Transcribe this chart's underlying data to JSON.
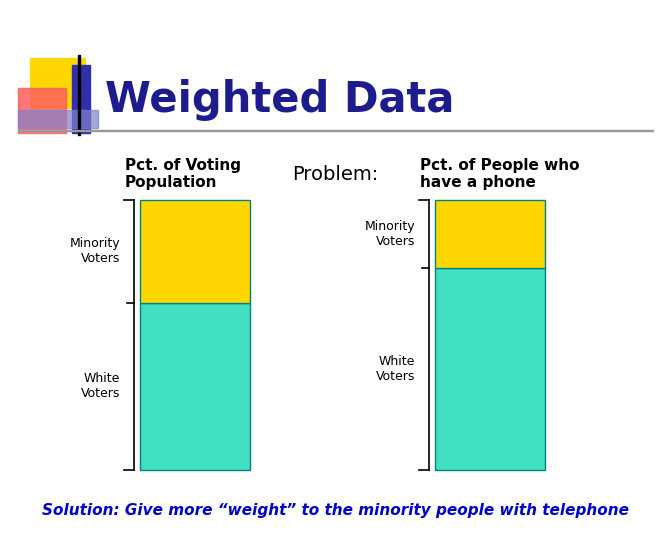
{
  "title": "Weighted Data",
  "subtitle": "Problem:",
  "solution_text": "Solution: Give more “weight” to the minority people with telephone",
  "bar1_title": "Pct. of Voting\nPopulation",
  "bar2_title": "Pct. of People who\nhave a phone",
  "bar1_minority": 0.38,
  "bar1_white": 0.62,
  "bar2_minority": 0.25,
  "bar2_white": 0.75,
  "minority_color": "#FFD700",
  "white_color": "#40E0C0",
  "bar_edge_color": "#008080",
  "background_color": "#FFFFFF",
  "title_color": "#1C1C8C",
  "solution_color": "#0000CC",
  "label_minority": "Minority\nVoters",
  "label_white": "White\nVoters",
  "icon_yellow": "#FFD700",
  "icon_red": "#FF6060",
  "icon_blue": "#3030AA",
  "icon_blue2": "#8080CC",
  "line_color": "#999999"
}
